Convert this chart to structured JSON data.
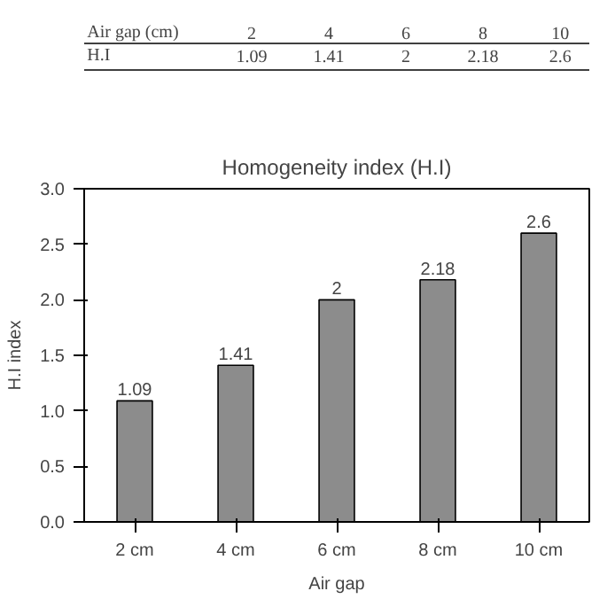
{
  "chart_data": {
    "type": "bar",
    "title": "Homogeneity index (H.I)",
    "xlabel": "Air gap",
    "ylabel": "H.I index",
    "categories": [
      "2 cm",
      "4 cm",
      "6 cm",
      "8 cm",
      "10 cm"
    ],
    "values": [
      1.09,
      1.41,
      2,
      2.18,
      2.6
    ],
    "color": "#8c8c8c",
    "ylim": [
      0,
      3
    ],
    "yticks": [
      {
        "value": 0,
        "label": "0.0"
      },
      {
        "value": 0.5,
        "label": "0.5"
      },
      {
        "value": 1,
        "label": "1.0"
      },
      {
        "value": 1.5,
        "label": "1.5"
      },
      {
        "value": 2,
        "label": "2.0"
      },
      {
        "value": 2.5,
        "label": "2.5"
      },
      {
        "value": 3,
        "label": "3.0"
      }
    ],
    "value_labels": [
      "1.09",
      "1.41",
      "2",
      "2.18",
      "2.6"
    ],
    "grid": false,
    "annotations": [
      "Air  gap  (cm)",
      "2",
      "4",
      "6",
      "8",
      "10",
      "H.I"
    ]
  }
}
